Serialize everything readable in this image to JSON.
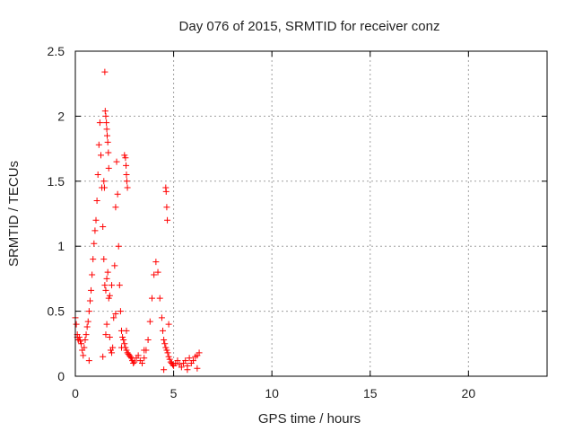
{
  "chart_data": {
    "type": "scatter",
    "title": "Day 076 of 2015, SRMTID for receiver conz",
    "xlabel": "GPS time / hours",
    "ylabel": "SRMTID / TECUs",
    "xlim": [
      0,
      24
    ],
    "ylim": [
      0,
      2.5
    ],
    "xticks": [
      0,
      5,
      10,
      15,
      20
    ],
    "yticks": [
      0,
      0.5,
      1,
      1.5,
      2,
      2.5
    ],
    "x_tick_labels": [
      "0",
      "5",
      "10",
      "15",
      "20"
    ],
    "y_tick_labels": [
      "0",
      "0.5",
      "1",
      "1.5",
      "2",
      "2.5"
    ],
    "grid": true,
    "marker": "+",
    "color": "#ff0000",
    "series": [
      {
        "name": "conz",
        "x": [
          0.0,
          0.05,
          0.1,
          0.15,
          0.2,
          0.25,
          0.3,
          0.35,
          0.4,
          0.45,
          0.5,
          0.55,
          0.6,
          0.65,
          0.7,
          0.75,
          0.8,
          0.85,
          0.9,
          0.95,
          1.0,
          1.05,
          1.1,
          1.15,
          1.2,
          1.25,
          1.3,
          1.35,
          1.4,
          1.45,
          1.5,
          1.55,
          1.6,
          1.65,
          1.7,
          1.75,
          1.8,
          1.85,
          1.9,
          1.95,
          2.0,
          2.05,
          2.1,
          2.15,
          2.2,
          2.25,
          2.3,
          2.35,
          2.4,
          2.45,
          2.5,
          2.55,
          2.6,
          2.65,
          2.7,
          2.75,
          2.8,
          2.85,
          2.9,
          2.95,
          3.0,
          3.1,
          3.2,
          3.3,
          3.4,
          3.5,
          3.6,
          3.7,
          3.8,
          3.9,
          4.0,
          4.1,
          4.2,
          4.3,
          4.4,
          4.45,
          4.5,
          4.55,
          4.6,
          4.65,
          4.7,
          4.75,
          4.8,
          4.85,
          4.9,
          4.95,
          5.0,
          5.1,
          5.2,
          5.3,
          5.4,
          5.5,
          5.6,
          5.7,
          5.8,
          5.9,
          6.0,
          6.1,
          6.2,
          6.3,
          1.5,
          1.52,
          1.55,
          1.58,
          1.6,
          1.62,
          1.65,
          1.68,
          1.7,
          1.45,
          1.48,
          2.5,
          2.55,
          2.58,
          2.6,
          2.62,
          2.65,
          4.6,
          4.62,
          4.65,
          4.68,
          1.4,
          1.55,
          1.6,
          1.75,
          1.85,
          2.05,
          2.35,
          2.6,
          4.5,
          4.75,
          0.1,
          0.7,
          3.5,
          5.7,
          6.2
        ],
        "y": [
          0.45,
          0.4,
          0.32,
          0.28,
          0.3,
          0.27,
          0.25,
          0.2,
          0.16,
          0.22,
          0.28,
          0.32,
          0.38,
          0.42,
          0.5,
          0.58,
          0.66,
          0.78,
          0.9,
          1.02,
          1.12,
          1.2,
          1.35,
          1.55,
          1.78,
          1.95,
          1.7,
          1.45,
          1.15,
          0.9,
          0.7,
          0.66,
          0.75,
          0.8,
          0.6,
          0.3,
          0.2,
          0.18,
          0.22,
          0.45,
          0.85,
          1.3,
          1.65,
          1.4,
          1.0,
          0.7,
          0.5,
          0.35,
          0.3,
          0.28,
          0.25,
          0.22,
          0.2,
          0.18,
          0.17,
          0.16,
          0.15,
          0.14,
          0.12,
          0.1,
          0.11,
          0.14,
          0.16,
          0.12,
          0.1,
          0.14,
          0.2,
          0.28,
          0.42,
          0.6,
          0.78,
          0.88,
          0.8,
          0.6,
          0.45,
          0.35,
          0.28,
          0.25,
          0.22,
          0.2,
          0.18,
          0.15,
          0.13,
          0.11,
          0.1,
          0.09,
          0.08,
          0.1,
          0.12,
          0.09,
          0.07,
          0.1,
          0.12,
          0.08,
          0.14,
          0.1,
          0.12,
          0.15,
          0.16,
          0.18,
          2.34,
          2.04,
          2.0,
          1.95,
          1.9,
          1.85,
          1.8,
          1.72,
          1.6,
          1.5,
          1.45,
          1.7,
          1.68,
          1.62,
          1.55,
          1.5,
          1.45,
          1.45,
          1.42,
          1.3,
          1.2,
          0.15,
          0.32,
          0.4,
          0.62,
          0.7,
          0.48,
          0.22,
          0.35,
          0.05,
          0.4,
          0.3,
          0.12,
          0.2,
          0.05,
          0.06
        ]
      }
    ]
  }
}
